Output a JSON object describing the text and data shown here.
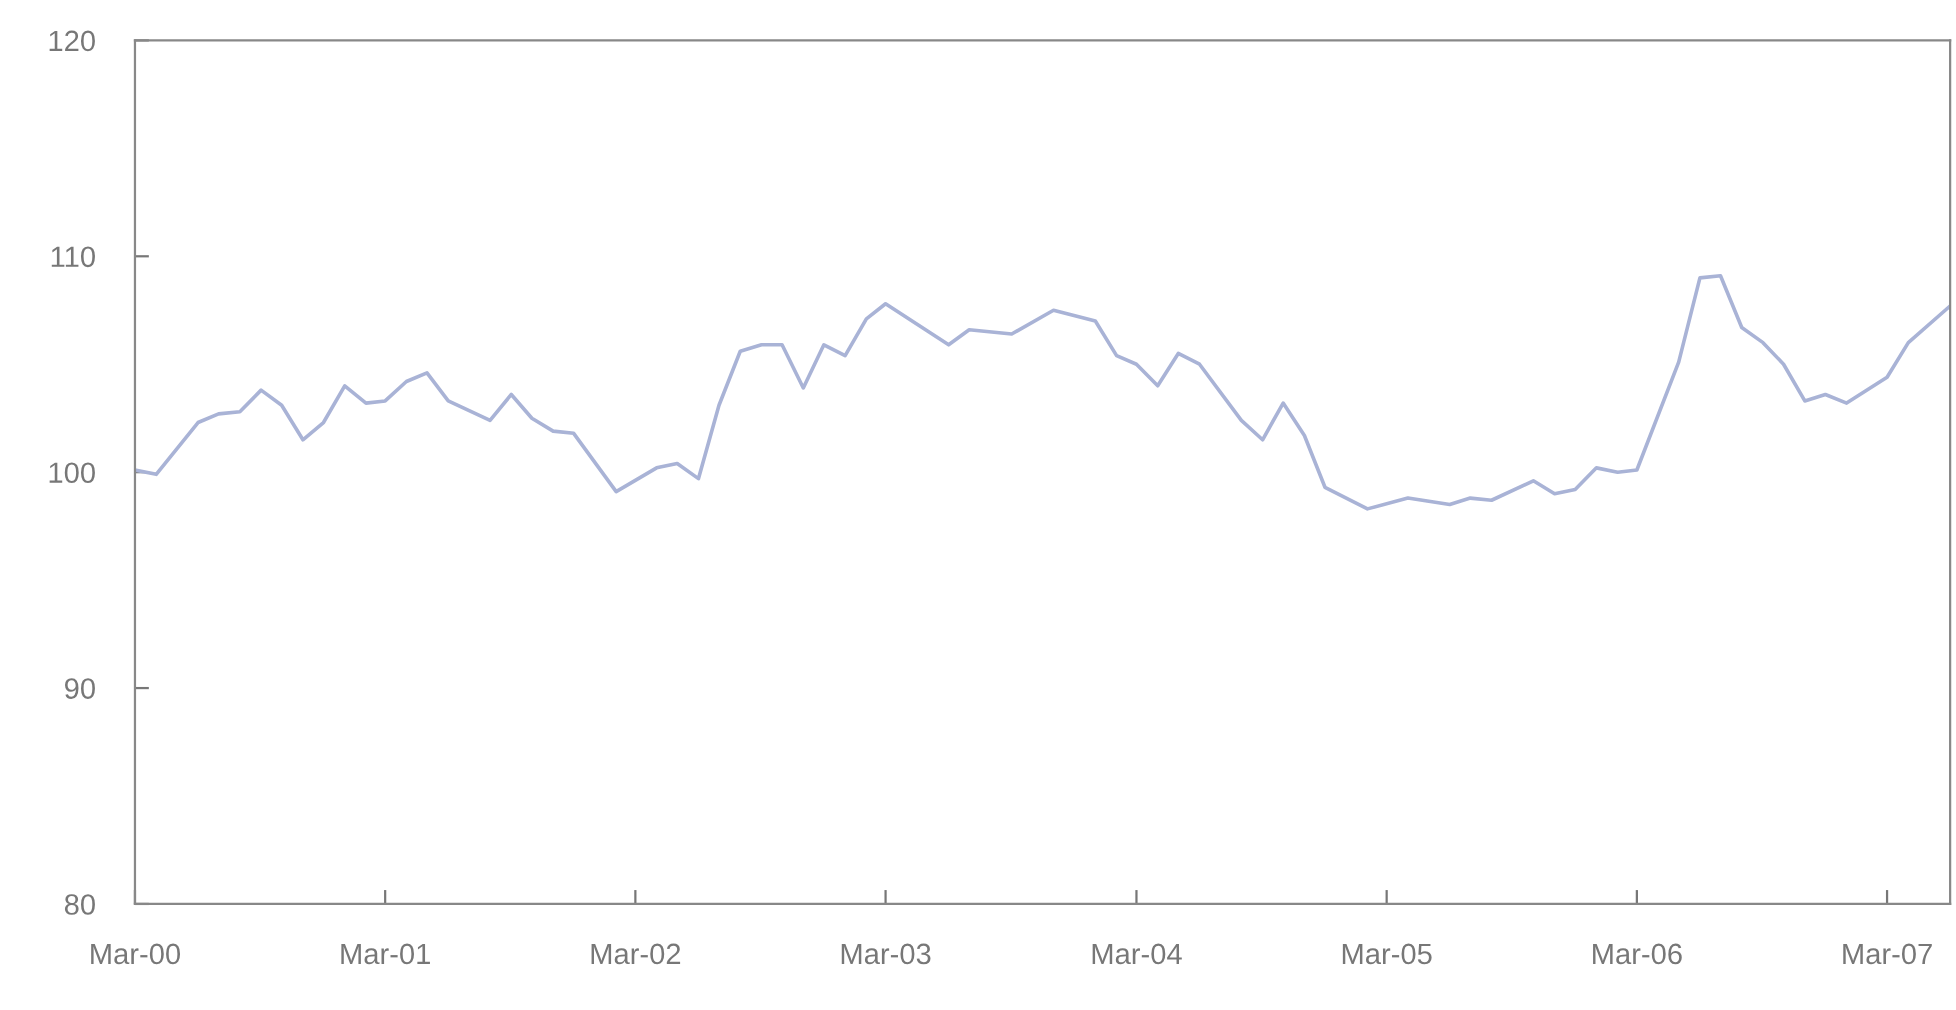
{
  "chart_data": {
    "type": "line",
    "color": "#a9b3d6",
    "x": [
      "2000-03",
      "2000-04",
      "2000-06",
      "2000-07",
      "2000-08",
      "2000-09",
      "2000-10",
      "2000-11",
      "2000-12",
      "2001-01",
      "2001-02",
      "2001-03",
      "2001-04",
      "2001-05",
      "2001-06",
      "2001-08",
      "2001-09",
      "2001-10",
      "2001-11",
      "2001-12",
      "2002-02",
      "2002-04",
      "2002-05",
      "2002-06",
      "2002-07",
      "2002-08",
      "2002-09",
      "2002-10",
      "2002-11",
      "2002-12",
      "2003-01",
      "2003-02",
      "2003-03",
      "2003-06",
      "2003-07",
      "2003-09",
      "2003-11",
      "2004-01",
      "2004-02",
      "2004-03",
      "2004-04",
      "2004-05",
      "2004-06",
      "2004-08",
      "2004-09",
      "2004-10",
      "2004-11",
      "2004-12",
      "2005-02",
      "2005-04",
      "2005-06",
      "2005-07",
      "2005-08",
      "2005-10",
      "2005-11",
      "2005-12",
      "2006-01",
      "2006-02",
      "2006-03",
      "2006-05",
      "2006-06",
      "2006-07",
      "2006-08",
      "2006-09",
      "2006-10",
      "2006-11",
      "2006-12",
      "2007-01",
      "2007-03",
      "2007-04",
      "2007-06"
    ],
    "values": [
      100.1,
      99.9,
      102.3,
      102.7,
      102.8,
      103.8,
      103.1,
      101.5,
      102.3,
      104.0,
      103.2,
      103.3,
      104.2,
      104.6,
      103.3,
      102.4,
      103.6,
      102.5,
      101.9,
      101.8,
      99.1,
      100.2,
      100.4,
      99.7,
      103.1,
      105.6,
      105.9,
      105.9,
      103.9,
      105.9,
      105.4,
      107.1,
      107.8,
      105.9,
      106.6,
      106.4,
      107.5,
      107.0,
      105.4,
      105.0,
      104.0,
      105.5,
      105.0,
      102.4,
      101.5,
      103.2,
      101.7,
      99.3,
      98.3,
      98.8,
      98.5,
      98.8,
      98.7,
      99.6,
      99.0,
      99.2,
      100.2,
      100.0,
      100.1,
      105.1,
      109.0,
      109.1,
      106.7,
      106.0,
      105.0,
      103.3,
      103.6,
      103.2,
      104.4,
      106.0,
      107.7
    ],
    "xlim": [
      "2000-03",
      "2007-06"
    ],
    "xticks": [
      {
        "value": "2000-03",
        "label": "Mar-00"
      },
      {
        "value": "2001-03",
        "label": "Mar-01"
      },
      {
        "value": "2002-03",
        "label": "Mar-02"
      },
      {
        "value": "2003-03",
        "label": "Mar-03"
      },
      {
        "value": "2004-03",
        "label": "Mar-04"
      },
      {
        "value": "2005-03",
        "label": "Mar-05"
      },
      {
        "value": "2006-03",
        "label": "Mar-06"
      },
      {
        "value": "2007-03",
        "label": "Mar-07"
      }
    ],
    "ylim": [
      80,
      120
    ],
    "yticks": [
      80,
      90,
      100,
      110,
      120
    ],
    "grid": false,
    "legend": false,
    "marker": "none",
    "line_style": "solid"
  }
}
